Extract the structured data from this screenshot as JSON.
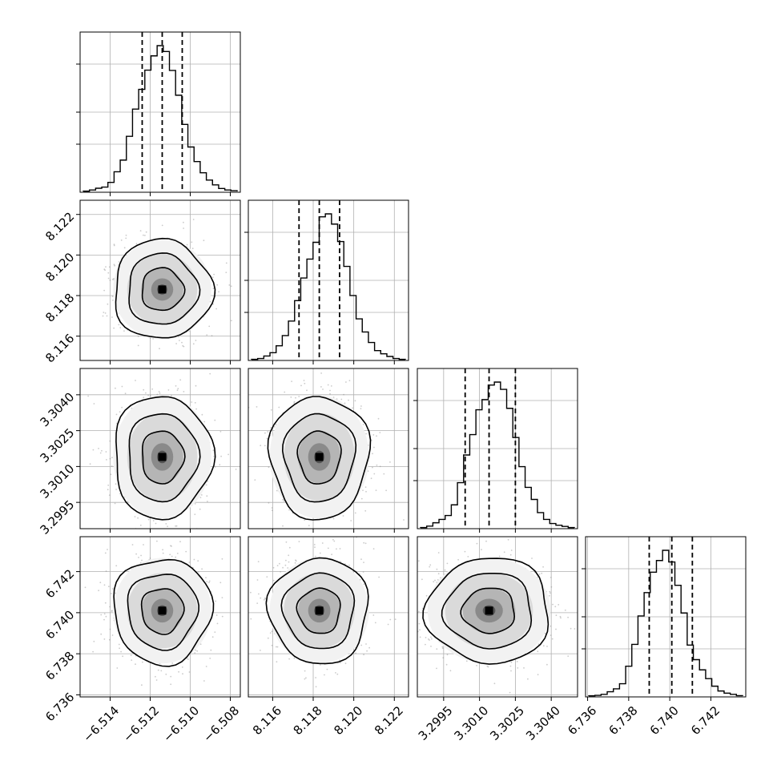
{
  "chart_data": {
    "type": "corner",
    "grid": true,
    "parameters": [
      {
        "range": [
          -6.5155,
          -6.5075
        ],
        "ticks": [
          -6.514,
          -6.512,
          -6.51,
          -6.508
        ],
        "tick_labels": [
          "−6.514",
          "−6.512",
          "−6.510",
          "−6.508"
        ],
        "quantiles": [
          -6.5124,
          -6.5114,
          -6.5104
        ],
        "hist_y_ticks": [
          0.5,
          0.8,
          0.3
        ],
        "histogram": [
          0.002,
          0.01,
          0.022,
          0.03,
          0.062,
          0.135,
          0.215,
          0.378,
          0.565,
          0.7,
          0.832,
          0.93,
          1.0,
          0.96,
          0.83,
          0.66,
          0.46,
          0.305,
          0.205,
          0.128,
          0.078,
          0.045,
          0.02,
          0.01,
          0.005
        ]
      },
      {
        "range": [
          8.1148,
          8.1227
        ],
        "ticks": [
          8.116,
          8.118,
          8.12,
          8.122
        ],
        "tick_labels": [
          "8.116",
          "8.118",
          "8.120",
          "8.122"
        ],
        "quantiles": [
          8.1173,
          8.1183,
          8.1193
        ],
        "hist_y_ticks": [
          0.5,
          0.8,
          0.3
        ],
        "histogram": [
          0.002,
          0.008,
          0.025,
          0.048,
          0.095,
          0.165,
          0.265,
          0.405,
          0.56,
          0.69,
          0.805,
          0.98,
          1.0,
          0.93,
          0.81,
          0.64,
          0.44,
          0.28,
          0.19,
          0.118,
          0.062,
          0.04,
          0.022,
          0.008,
          0.002
        ]
      },
      {
        "range": [
          3.2984,
          3.3051
        ],
        "ticks": [
          3.2995,
          3.301,
          3.3025,
          3.304
        ],
        "tick_labels": [
          "3.2995",
          "3.3010",
          "3.3025",
          "3.3040"
        ],
        "quantiles": [
          3.3004,
          3.3014,
          3.3025
        ],
        "hist_y_ticks": [
          0.5,
          0.8,
          0.3
        ],
        "histogram": [
          0.002,
          0.012,
          0.035,
          0.058,
          0.085,
          0.158,
          0.31,
          0.5,
          0.64,
          0.81,
          0.88,
          0.98,
          1.0,
          0.95,
          0.82,
          0.62,
          0.42,
          0.278,
          0.195,
          0.105,
          0.058,
          0.03,
          0.018,
          0.01,
          0.002
        ]
      },
      {
        "range": [
          6.7359,
          6.7437
        ],
        "ticks": [
          6.736,
          6.738,
          6.74,
          6.742
        ],
        "tick_labels": [
          "6.736",
          "6.738",
          "6.740",
          "6.742"
        ],
        "quantiles": [
          6.739,
          6.7401,
          6.7411
        ],
        "hist_y_ticks": [
          0.5,
          0.8,
          0.3
        ],
        "histogram": [
          0.002,
          0.005,
          0.012,
          0.03,
          0.05,
          0.085,
          0.205,
          0.355,
          0.55,
          0.71,
          0.85,
          0.93,
          1.0,
          0.92,
          0.76,
          0.57,
          0.35,
          0.25,
          0.18,
          0.12,
          0.068,
          0.035,
          0.02,
          0.012,
          0.003
        ]
      }
    ]
  }
}
